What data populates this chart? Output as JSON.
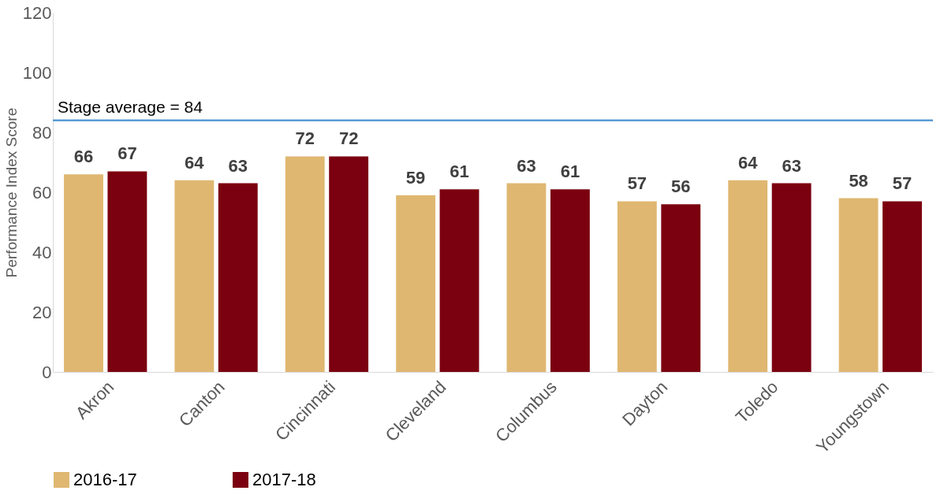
{
  "chart_data": {
    "type": "bar",
    "ylabel": "Performance Index Score",
    "categories": [
      "Akron",
      "Canton",
      "Cincinnati",
      "Cleveland",
      "Columbus",
      "Dayton",
      "Toledo",
      "Youngstown"
    ],
    "series": [
      {
        "name": "2016-17",
        "color": "#dfb771",
        "values": [
          66,
          64,
          72,
          59,
          63,
          57,
          64,
          58
        ]
      },
      {
        "name": "2017-18",
        "color": "#7b0010",
        "values": [
          67,
          63,
          72,
          61,
          61,
          56,
          63,
          57
        ]
      }
    ],
    "ylim": [
      0,
      120
    ],
    "yticks": [
      0,
      20,
      40,
      60,
      80,
      100,
      120
    ],
    "ref_lines": [
      {
        "axis": "y",
        "value": 84,
        "label": "Stage average = 84",
        "color": "#5b9bd5"
      }
    ],
    "data_labels": true,
    "legend": "bottom",
    "grid": false
  }
}
